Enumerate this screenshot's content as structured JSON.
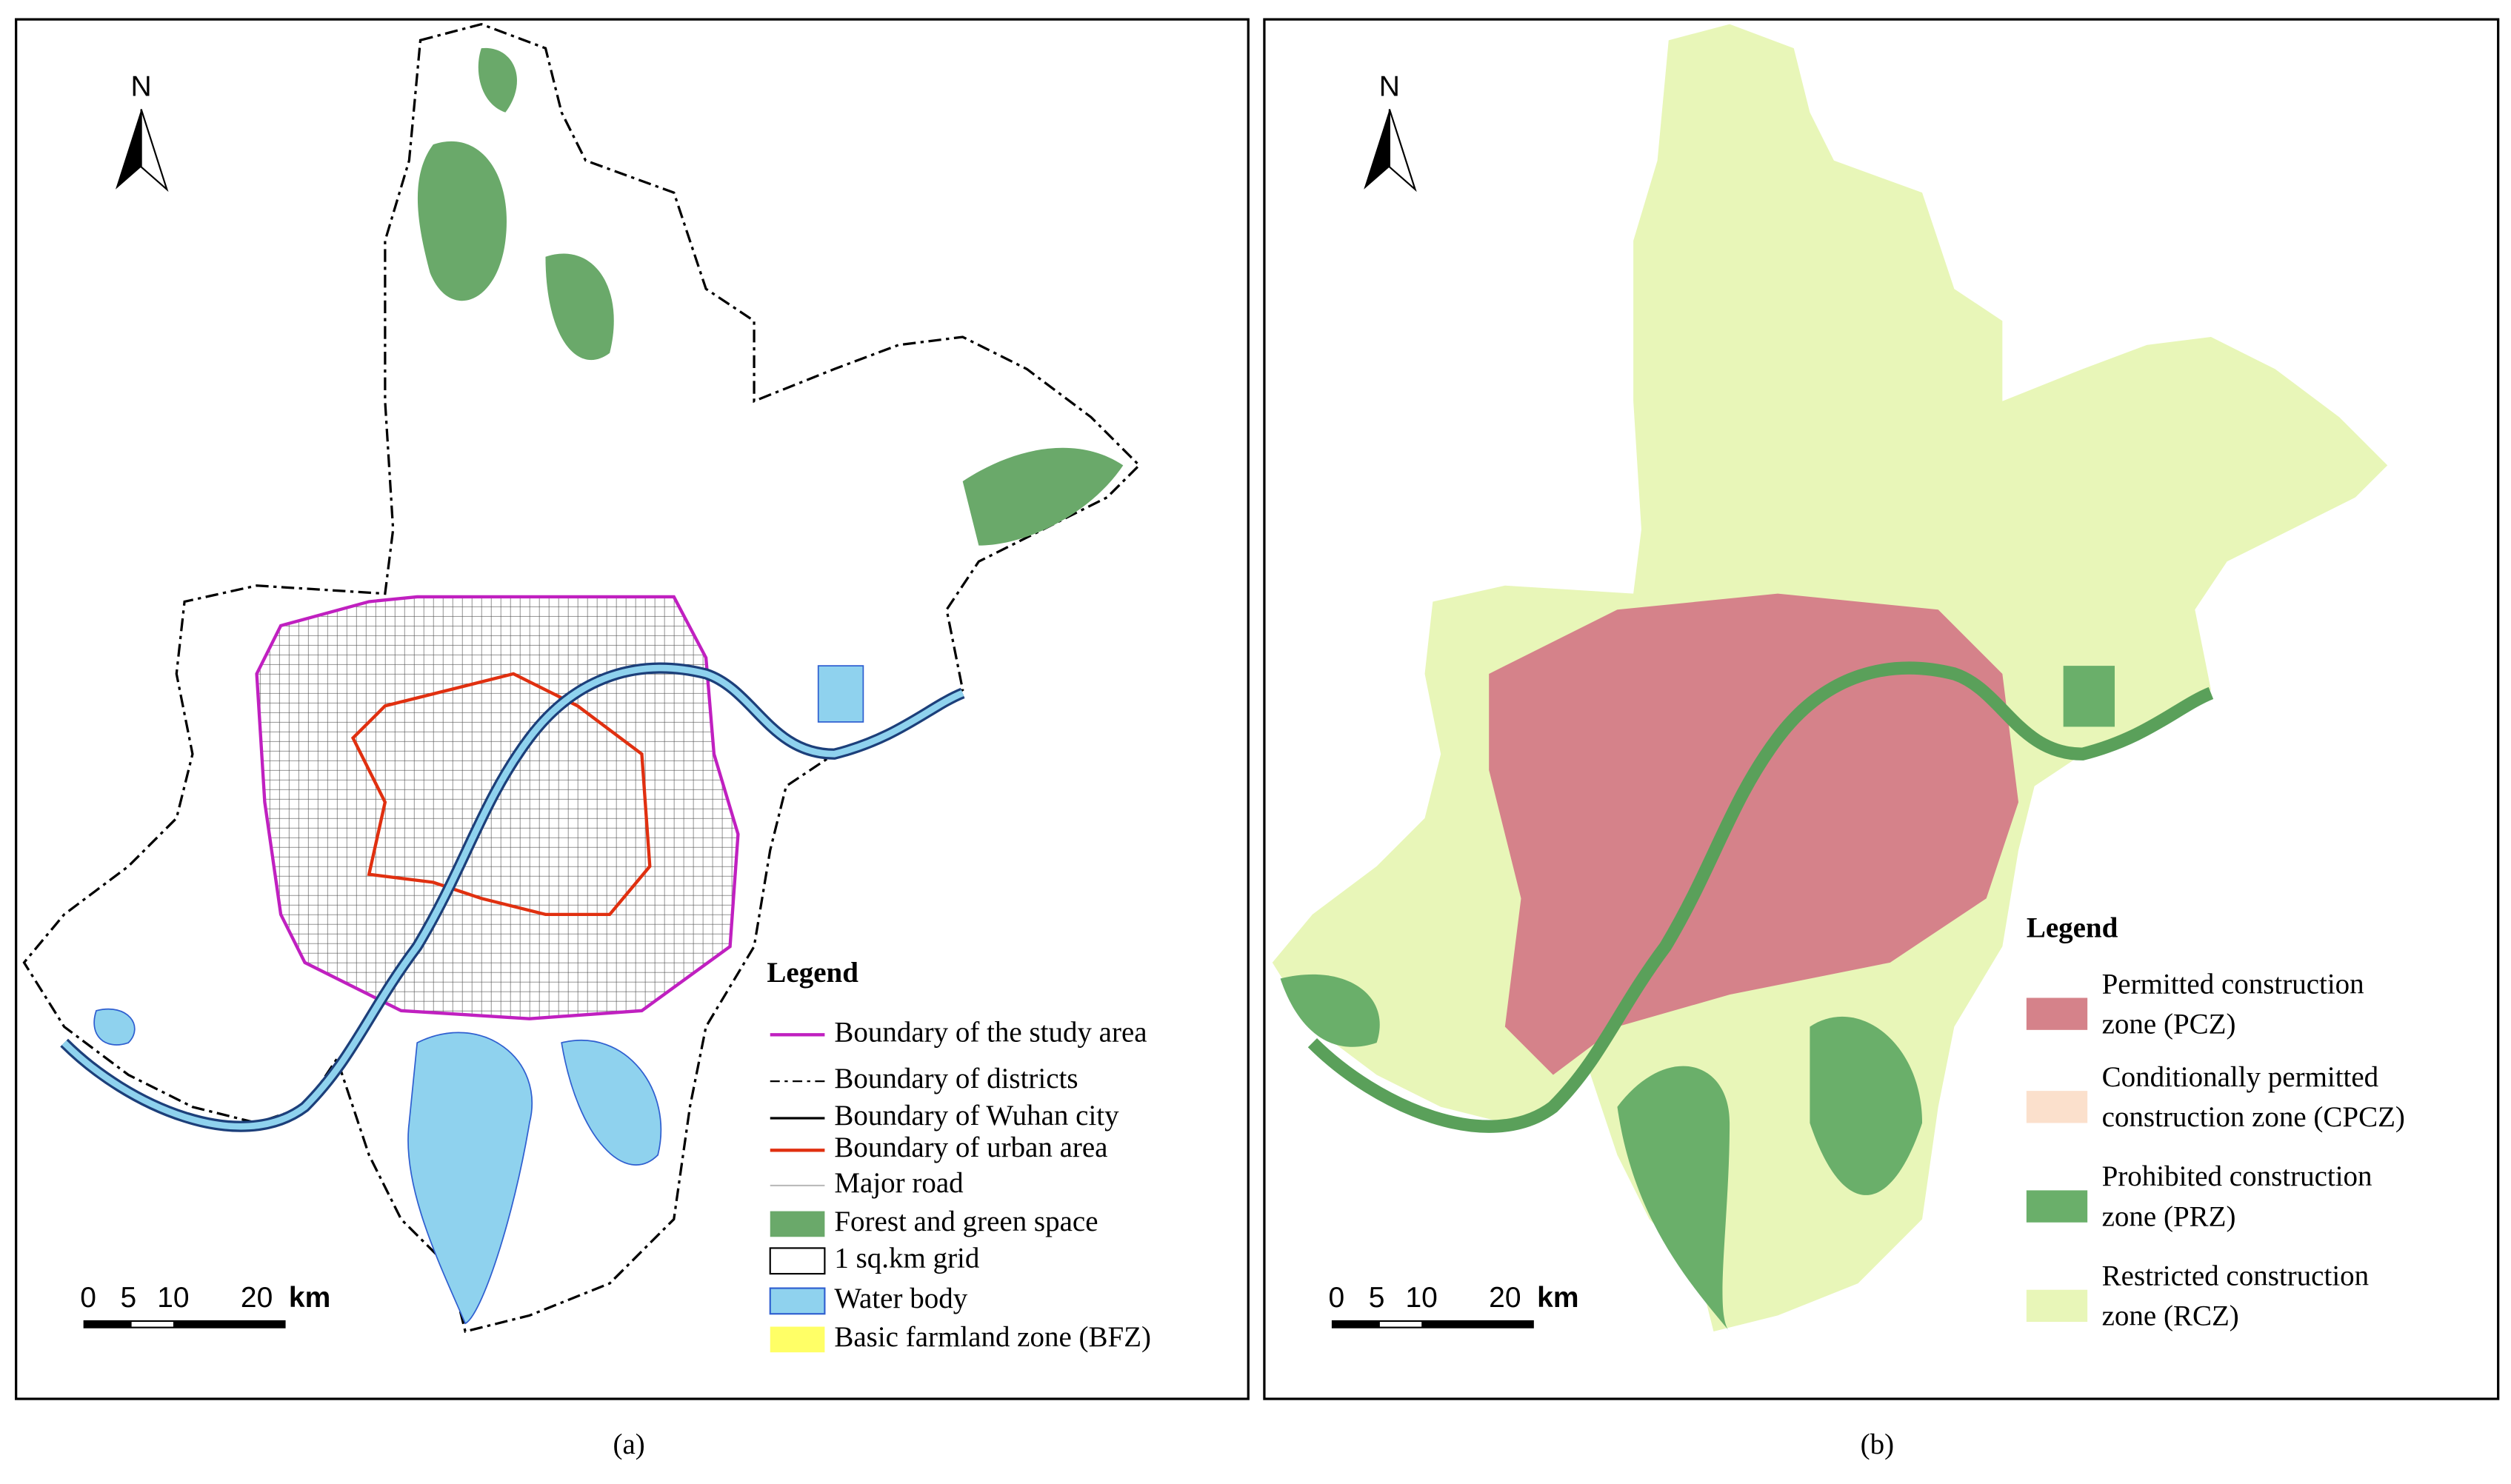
{
  "panels": [
    {
      "north": "N",
      "scale": {
        "labels": [
          "0",
          "5",
          "10",
          "20"
        ],
        "unit": "km"
      },
      "legend": {
        "title": "Legend",
        "items": [
          "Boundary of the study area",
          "Boundary of districts",
          "Boundary of Wuhan city",
          "Boundary of urban area",
          "Major road",
          "Forest and green space",
          "1 sq.km grid",
          "Water body",
          "Basic farmland zone (BFZ)"
        ]
      },
      "caption": "(a)"
    },
    {
      "north": "N",
      "scale": {
        "labels": [
          "0",
          "5",
          "10",
          "20"
        ],
        "unit": "km"
      },
      "legend": {
        "title": "Legend",
        "items": [
          [
            "Permitted construction",
            "zone (PCZ)"
          ],
          [
            "Conditionally permitted",
            "construction zone (CPCZ)"
          ],
          [
            "Prohibited construction",
            "zone (PRZ)"
          ],
          [
            "Restricted construction",
            "zone (RCZ)"
          ]
        ]
      },
      "caption": "(b)"
    }
  ]
}
